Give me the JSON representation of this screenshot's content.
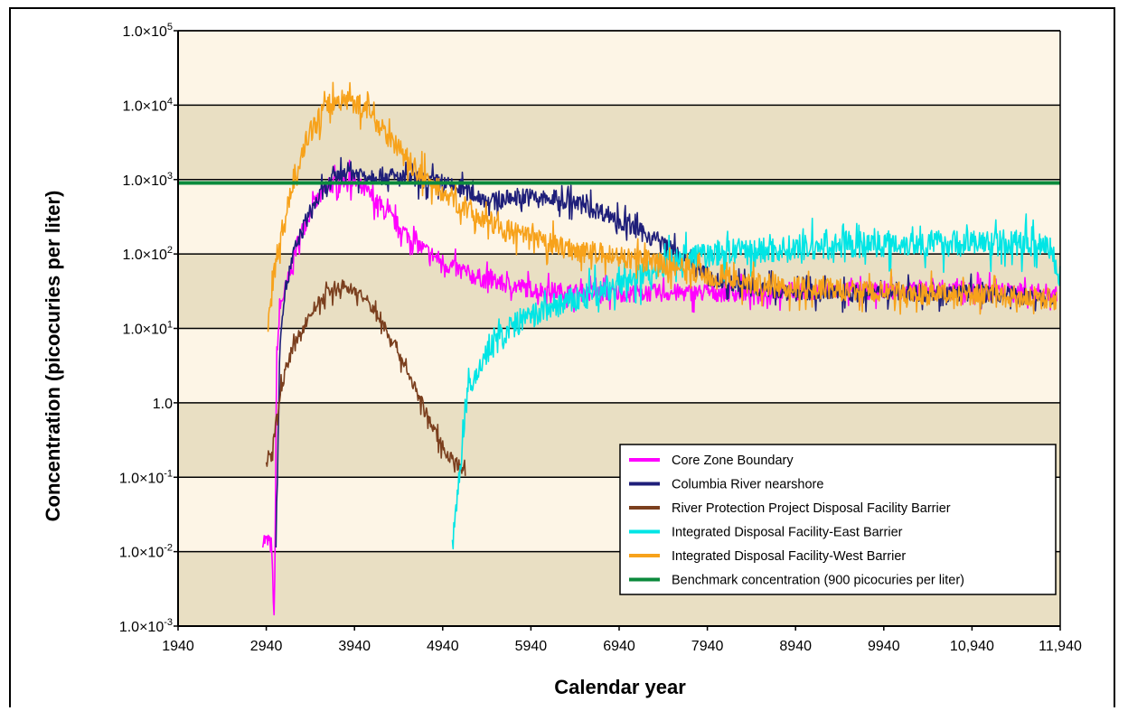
{
  "chart_data": {
    "type": "line",
    "title": "",
    "xlabel": "Calendar year",
    "ylabel": "Concentration (picocuries per liter)",
    "xscale": "linear",
    "yscale": "log",
    "xlim": [
      1940,
      11940
    ],
    "ylim": [
      0.001,
      100000
    ],
    "x_ticks": [
      1940,
      2940,
      3940,
      4940,
      5940,
      6940,
      7940,
      8940,
      9940,
      10940,
      11940
    ],
    "x_tick_labels": [
      "1940",
      "2940",
      "3940",
      "4940",
      "5940",
      "6940",
      "7940",
      "8940",
      "9940",
      "10,940",
      "11,940"
    ],
    "y_ticks": [
      0.001,
      0.01,
      0.1,
      1,
      10,
      100,
      1000,
      10000,
      100000
    ],
    "y_tick_labels": [
      {
        "base": "1.0×10",
        "exp": "-3"
      },
      {
        "base": "1.0×10",
        "exp": "-2"
      },
      {
        "base": "1.0×10",
        "exp": "-1"
      },
      {
        "base": "1.0",
        "exp": ""
      },
      {
        "base": "1.0×10",
        "exp": "1"
      },
      {
        "base": "1.0×10",
        "exp": "2"
      },
      {
        "base": "1.0×10",
        "exp": "3"
      },
      {
        "base": "1.0×10",
        "exp": "4"
      },
      {
        "base": "1.0×10",
        "exp": "5"
      }
    ],
    "background_bands": [
      "#fdf5e6",
      "#e9dfc3"
    ],
    "grid": "horizontal black lines at each decade",
    "legend_position": "lower-right",
    "series": [
      {
        "name": "Core Zone Boundary",
        "color": "#ff00ff",
        "noise": 0.12,
        "x": [
          2900,
          3000,
          3030,
          3060,
          3100,
          3200,
          3300,
          3450,
          3600,
          3750,
          3850,
          3950,
          4100,
          4300,
          4500,
          4700,
          5000,
          5300,
          5600,
          6000,
          6500,
          7000,
          7500,
          8000,
          8500,
          9000,
          10000,
          11000,
          11900
        ],
        "y": [
          0.015,
          0.012,
          0.001,
          5,
          20,
          50,
          150,
          400,
          700,
          950,
          1050,
          900,
          650,
          350,
          200,
          120,
          70,
          50,
          40,
          33,
          30,
          30,
          30,
          30,
          30,
          32,
          32,
          32,
          30
        ]
      },
      {
        "name": "Columbia River nearshore",
        "color": "#1f1f7a",
        "noise": 0.12,
        "x": [
          3050,
          3100,
          3150,
          3250,
          3400,
          3550,
          3700,
          3850,
          4000,
          4300,
          4600,
          4900,
          5200,
          5500,
          5800,
          6100,
          6400,
          6800,
          7100,
          7400,
          7700,
          8000,
          8500,
          9000,
          10000,
          11000,
          11900
        ],
        "y": [
          0.013,
          10,
          30,
          100,
          300,
          600,
          1000,
          1300,
          1200,
          1100,
          1000,
          900,
          700,
          500,
          600,
          550,
          500,
          350,
          220,
          150,
          80,
          45,
          35,
          30,
          30,
          30,
          25
        ]
      },
      {
        "name": "River Protection Project Disposal Facility Barrier",
        "color": "#7b3f1e",
        "noise": 0.09,
        "x": [
          2940,
          3000,
          3050,
          3100,
          3200,
          3350,
          3500,
          3650,
          3800,
          3950,
          4100,
          4250,
          4400,
          4550,
          4700,
          4850,
          5000,
          5200
        ],
        "y": [
          0.15,
          0.2,
          0.5,
          1.5,
          4,
          10,
          20,
          30,
          37,
          32,
          22,
          12,
          6,
          2.5,
          1,
          0.4,
          0.2,
          0.12
        ]
      },
      {
        "name": "Integrated Disposal Facility-East Barrier",
        "color": "#00e5e5",
        "noise": 0.18,
        "x": [
          5050,
          5200,
          5400,
          5600,
          5800,
          6000,
          6200,
          6500,
          7000,
          7500,
          8000,
          8500,
          9000,
          10000,
          11000,
          11800,
          11880,
          11940
        ],
        "y": [
          0.01,
          1,
          4,
          8,
          12,
          15,
          20,
          25,
          40,
          80,
          100,
          110,
          120,
          140,
          140,
          140,
          80,
          50
        ]
      },
      {
        "name": "Integrated Disposal Facility-West Barrier",
        "color": "#f7a21b",
        "noise": 0.15,
        "x": [
          2960,
          3000,
          3050,
          3150,
          3250,
          3350,
          3450,
          3550,
          3650,
          3800,
          3950,
          4100,
          4250,
          4400,
          4600,
          4800,
          5000,
          5300,
          5600,
          6000,
          6500,
          7000,
          7500,
          8000,
          8500,
          9000,
          10000,
          11000,
          11900
        ],
        "y": [
          10,
          30,
          80,
          300,
          1000,
          2500,
          4500,
          7000,
          10000,
          12000,
          11000,
          8000,
          5000,
          3000,
          1500,
          900,
          600,
          350,
          220,
          150,
          110,
          90,
          70,
          50,
          40,
          35,
          30,
          28,
          25
        ]
      },
      {
        "name": "Benchmark concentration (900 picocuries per liter)",
        "color": "#0b8a3c",
        "noise": 0,
        "x": [
          1940,
          11940
        ],
        "y": [
          900,
          900
        ]
      }
    ]
  }
}
